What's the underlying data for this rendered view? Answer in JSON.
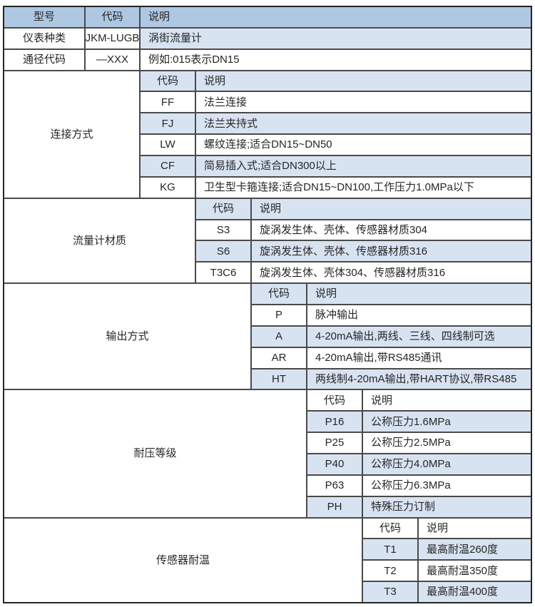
{
  "colors": {
    "header_bg": "#aec7e3",
    "alt_row_bg": "#d8e3f2",
    "row_bg": "#ffffff",
    "grid_line": "#4a4a4a",
    "outer_border": "#242424",
    "text": "#262626"
  },
  "table": {
    "header": {
      "model": "型号",
      "code": "代码",
      "desc": "说明"
    },
    "basic_rows": [
      {
        "label": "仪表种类",
        "code": "JKM-LUGB",
        "desc": "涡街流量计"
      },
      {
        "label": "通径代码",
        "code": "—XXX",
        "desc": "例如:015表示DN15"
      }
    ],
    "sections": [
      {
        "label": "连接方式",
        "sub_header": {
          "code": "代码",
          "desc": "说明"
        },
        "rows": [
          {
            "code": "FF",
            "desc": "法兰连接"
          },
          {
            "code": "FJ",
            "desc": "法兰夹持式"
          },
          {
            "code": "LW",
            "desc": "螺纹连接;适合DN15~DN50"
          },
          {
            "code": "CF",
            "desc": "简易插入式;适合DN300以上"
          },
          {
            "code": "KG",
            "desc": "卫生型卡箍连接;适合DN15~DN100,工作压力1.0MPa以下"
          }
        ]
      },
      {
        "label": "流量计材质",
        "sub_header": {
          "code": "代码",
          "desc": "说明"
        },
        "rows": [
          {
            "code": "S3",
            "desc": "旋涡发生体、壳体、传感器材质304"
          },
          {
            "code": "S6",
            "desc": "旋涡发生体、壳体、传感器材质316"
          },
          {
            "code": "T3C6",
            "desc": "旋涡发生体、壳体304、传感器材质316"
          }
        ]
      },
      {
        "label": "输出方式",
        "sub_header": {
          "code": "代码",
          "desc": "说明"
        },
        "rows": [
          {
            "code": "P",
            "desc": "脉冲输出"
          },
          {
            "code": "A",
            "desc": "4-20mA输出,两线、三线、四线制可选"
          },
          {
            "code": "AR",
            "desc": "4-20mA输出,带RS485通讯"
          },
          {
            "code": "HT",
            "desc": "两线制4-20mA输出,带HART协议,带RS485"
          }
        ]
      },
      {
        "label": "耐压等级",
        "sub_header": {
          "code": "代码",
          "desc": "说明"
        },
        "rows": [
          {
            "code": "P16",
            "desc": "公称压力1.6MPa"
          },
          {
            "code": "P25",
            "desc": "公称压力2.5MPa"
          },
          {
            "code": "P40",
            "desc": "公称压力4.0MPa"
          },
          {
            "code": "P63",
            "desc": "公称压力6.3MPa"
          },
          {
            "code": "PH",
            "desc": "特殊压力订制"
          }
        ]
      },
      {
        "label": "传感器耐温",
        "sub_header": {
          "code": "代码",
          "desc": "说明"
        },
        "rows": [
          {
            "code": "T1",
            "desc": "最高耐温260度"
          },
          {
            "code": "T2",
            "desc": "最高耐温350度"
          },
          {
            "code": "T3",
            "desc": "最高耐温400度"
          }
        ]
      }
    ]
  }
}
